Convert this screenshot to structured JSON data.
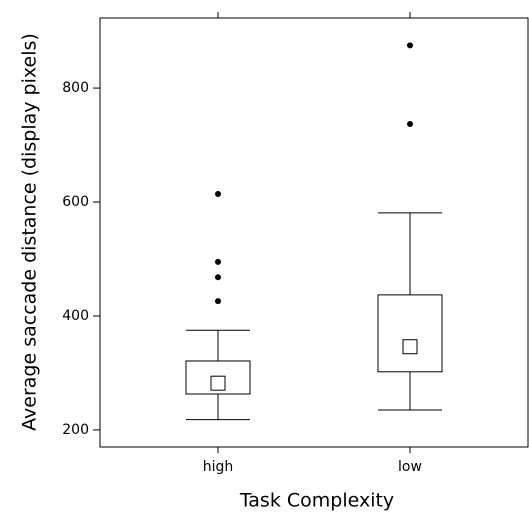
{
  "chart_data": {
    "type": "box",
    "x_label": "Task Complexity",
    "y_label": "Average saccade distance (display pixels)",
    "categories": [
      "high",
      "low"
    ],
    "boxes": [
      {
        "whisker_low": 218,
        "q1": 263,
        "median": 282,
        "q3": 321,
        "whisker_high": 375,
        "outliers": [
          426,
          468,
          495,
          614
        ]
      },
      {
        "whisker_low": 235,
        "q1": 302,
        "median": 346,
        "q3": 437,
        "whisker_high": 581,
        "outliers": [
          737,
          875
        ]
      }
    ],
    "ylim": [
      170,
      923
    ],
    "yticks": [
      200,
      400,
      600,
      800
    ],
    "color": "#000000"
  }
}
